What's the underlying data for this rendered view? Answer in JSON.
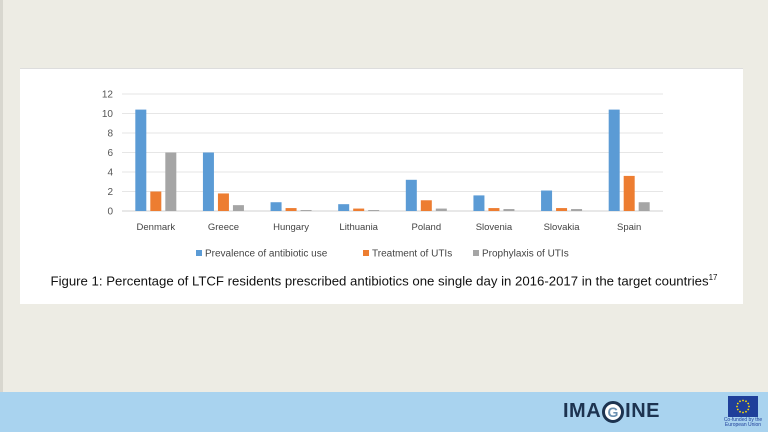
{
  "chart_data": {
    "type": "bar",
    "categories": [
      "Denmark",
      "Greece",
      "Hungary",
      "Lithuania",
      "Poland",
      "Slovenia",
      "Slovakia",
      "Spain"
    ],
    "series": [
      {
        "name": "Prevalence of antibiotic use",
        "color": "#5b9bd5",
        "values": [
          10.4,
          6.0,
          0.9,
          0.7,
          3.2,
          1.6,
          2.1,
          10.4
        ]
      },
      {
        "name": "Treatment of UTIs",
        "color": "#ed7d31",
        "values": [
          2.0,
          1.8,
          0.3,
          0.25,
          1.1,
          0.3,
          0.3,
          3.6
        ]
      },
      {
        "name": "Prophylaxis of UTIs",
        "color": "#a5a5a5",
        "values": [
          6.0,
          0.6,
          0.1,
          0.1,
          0.25,
          0.2,
          0.2,
          0.9
        ]
      }
    ],
    "yticks": [
      "0",
      "2",
      "4",
      "6",
      "8",
      "10",
      "12"
    ],
    "ylim": [
      0,
      12
    ],
    "grid": true,
    "legend": "bottom"
  },
  "caption": {
    "text": "Figure 1: Percentage of LTCF residents prescribed antibiotics one single day in 2016-2017 in the target countries",
    "ref": "17"
  },
  "footer": {
    "logo_left": "IMA",
    "logo_g": "G",
    "logo_right": "INE",
    "eu_text": "Co-funded by the European Union"
  }
}
